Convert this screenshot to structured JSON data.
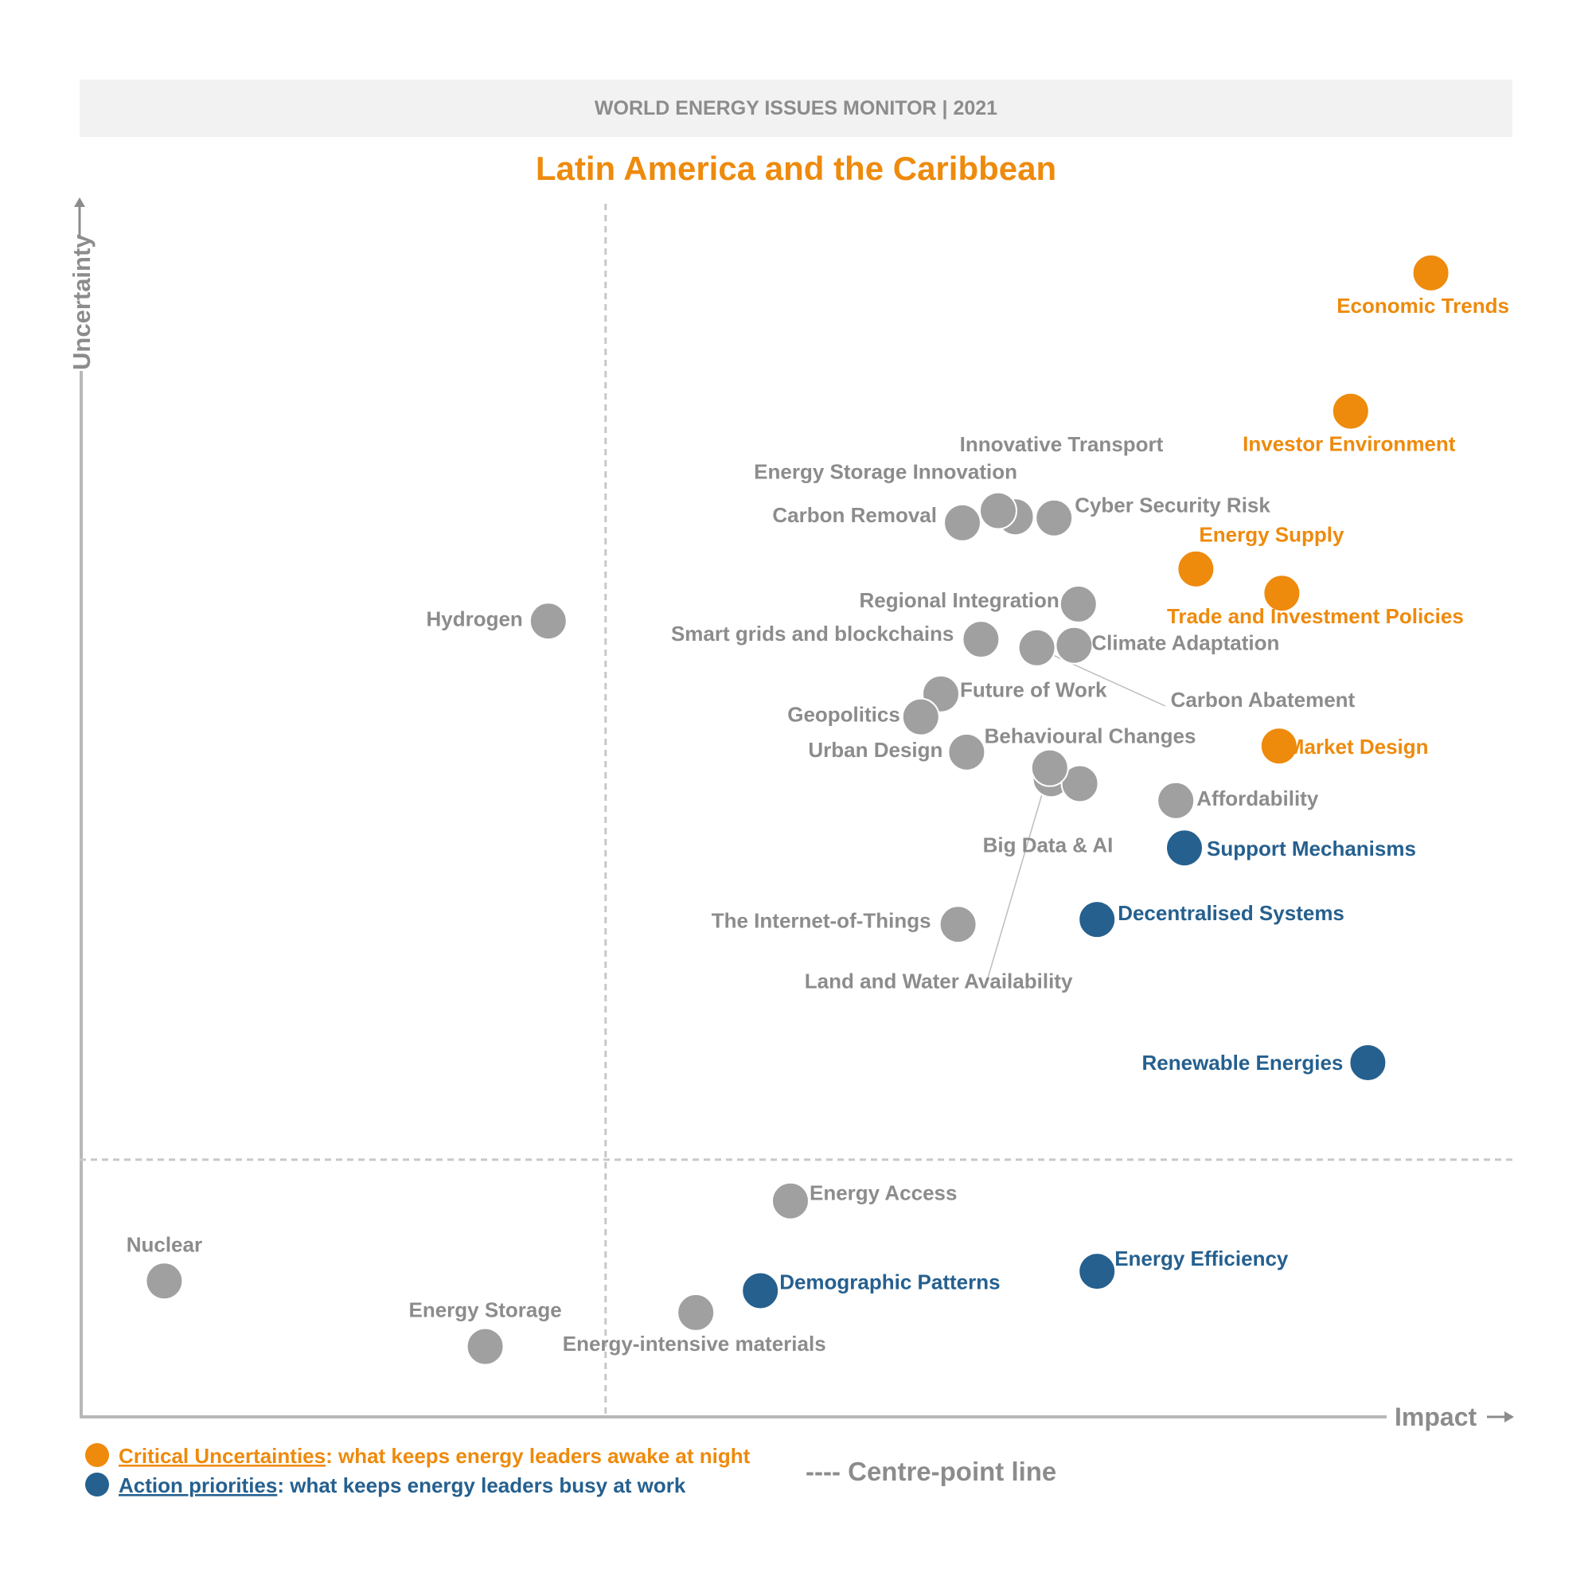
{
  "header": {
    "banner": "WORLD ENERGY ISSUES MONITOR | 2021"
  },
  "chart_data": {
    "type": "scatter",
    "title": "Latin America and the Caribbean",
    "xlabel": "Impact",
    "ylabel": "Uncertainty",
    "grid": false,
    "xlim": [
      0,
      1
    ],
    "ylim": [
      0,
      1
    ],
    "centre_point": {
      "x": 0.366,
      "y": 0.212
    },
    "colors": {
      "critical": "#ee8a0c",
      "action": "#25608f",
      "other": "#a0a0a0"
    },
    "points": [
      {
        "label": "Economic Trends",
        "x": 0.942,
        "y": 0.943,
        "category": "critical"
      },
      {
        "label": "Investor Environment",
        "x": 0.886,
        "y": 0.829,
        "category": "critical"
      },
      {
        "label": "Energy Supply",
        "x": 0.778,
        "y": 0.699,
        "category": "critical"
      },
      {
        "label": "Trade and Investment Policies",
        "x": 0.838,
        "y": 0.679,
        "category": "critical"
      },
      {
        "label": "Market Design",
        "x": 0.836,
        "y": 0.553,
        "category": "critical"
      },
      {
        "label": "Support Mechanisms",
        "x": 0.77,
        "y": 0.469,
        "category": "action"
      },
      {
        "label": "Decentralised Systems",
        "x": 0.709,
        "y": 0.41,
        "category": "action"
      },
      {
        "label": "Renewable Energies",
        "x": 0.898,
        "y": 0.292,
        "category": "action"
      },
      {
        "label": "Energy Efficiency",
        "x": 0.709,
        "y": 0.12,
        "category": "action"
      },
      {
        "label": "Demographic Patterns",
        "x": 0.474,
        "y": 0.104,
        "category": "action"
      },
      {
        "label": "Innovative Transport",
        "x": 0.652,
        "y": 0.742,
        "category": "other"
      },
      {
        "label": "Energy Storage Innovation",
        "x": 0.64,
        "y": 0.747,
        "category": "other"
      },
      {
        "label": "Carbon Removal",
        "x": 0.615,
        "y": 0.737,
        "category": "other"
      },
      {
        "label": "Cyber Security Risk",
        "x": 0.679,
        "y": 0.741,
        "category": "other"
      },
      {
        "label": "Hydrogen",
        "x": 0.326,
        "y": 0.656,
        "category": "other"
      },
      {
        "label": "Regional Integration",
        "x": 0.696,
        "y": 0.67,
        "category": "other"
      },
      {
        "label": "Smart grids and blockchains",
        "x": 0.628,
        "y": 0.641,
        "category": "other"
      },
      {
        "label": "Climate Adaptation",
        "x": 0.693,
        "y": 0.636,
        "category": "other"
      },
      {
        "label": "Carbon Abatement",
        "x": 0.667,
        "y": 0.634,
        "category": "other"
      },
      {
        "label": "Future of Work",
        "x": 0.6,
        "y": 0.596,
        "category": "other"
      },
      {
        "label": "Geopolitics",
        "x": 0.586,
        "y": 0.577,
        "category": "other"
      },
      {
        "label": "Urban Design",
        "x": 0.618,
        "y": 0.548,
        "category": "other"
      },
      {
        "label": "Behavioural Changes",
        "x": 0.677,
        "y": 0.526,
        "category": "other"
      },
      {
        "label": "Big Data & AI",
        "x": 0.697,
        "y": 0.522,
        "category": "other"
      },
      {
        "label": "Land and Water Availability",
        "x": 0.676,
        "y": 0.535,
        "category": "other"
      },
      {
        "label": "Affordability",
        "x": 0.764,
        "y": 0.508,
        "category": "other"
      },
      {
        "label": "The Internet-of-Things",
        "x": 0.612,
        "y": 0.406,
        "category": "other"
      },
      {
        "label": "Energy Access",
        "x": 0.495,
        "y": 0.178,
        "category": "other"
      },
      {
        "label": "Nuclear",
        "x": 0.058,
        "y": 0.112,
        "category": "other"
      },
      {
        "label": "Energy Storage",
        "x": 0.282,
        "y": 0.058,
        "category": "other"
      },
      {
        "label": "Energy-intensive materials",
        "x": 0.429,
        "y": 0.086,
        "category": "other"
      }
    ]
  },
  "legend": {
    "critical": {
      "term": "Critical Uncertainties",
      "desc": ": what keeps energy leaders awake at night"
    },
    "action": {
      "term": "Action priorities",
      "desc": ": what keeps energy leaders busy at work"
    },
    "centre": "---- Centre-point line"
  }
}
